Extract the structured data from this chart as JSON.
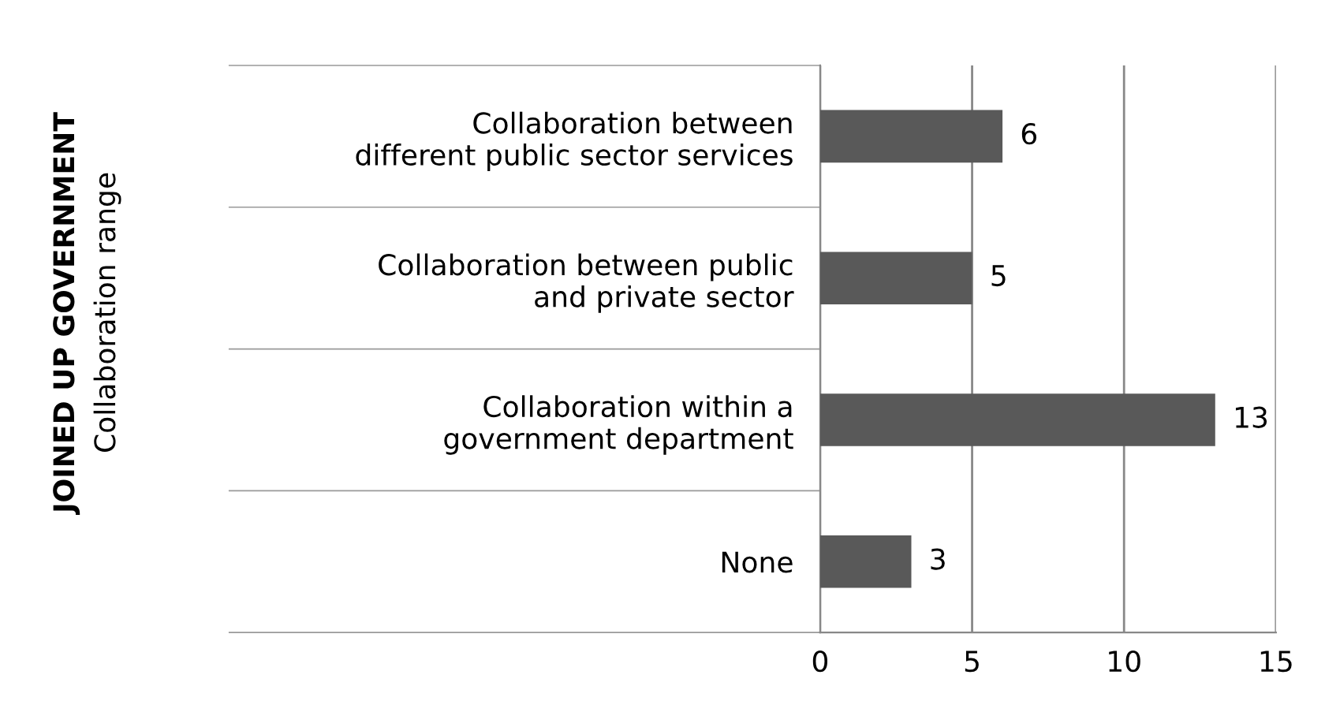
{
  "chart_data": {
    "type": "bar",
    "orientation": "horizontal",
    "title": "JOINED UP GOVERNMENT",
    "annotations": [
      "Collaboration range"
    ],
    "categories": [
      "Collaboration between\ndifferent public sector services",
      "Collaboration between public\nand private sector",
      "Collaboration within a\ngovernment department",
      "None"
    ],
    "values": [
      6,
      5,
      13,
      3
    ],
    "color": "#595959",
    "xlim": [
      0,
      15
    ],
    "xticks": [
      0,
      5,
      10,
      15
    ],
    "grid": "x",
    "data_labels": true
  }
}
